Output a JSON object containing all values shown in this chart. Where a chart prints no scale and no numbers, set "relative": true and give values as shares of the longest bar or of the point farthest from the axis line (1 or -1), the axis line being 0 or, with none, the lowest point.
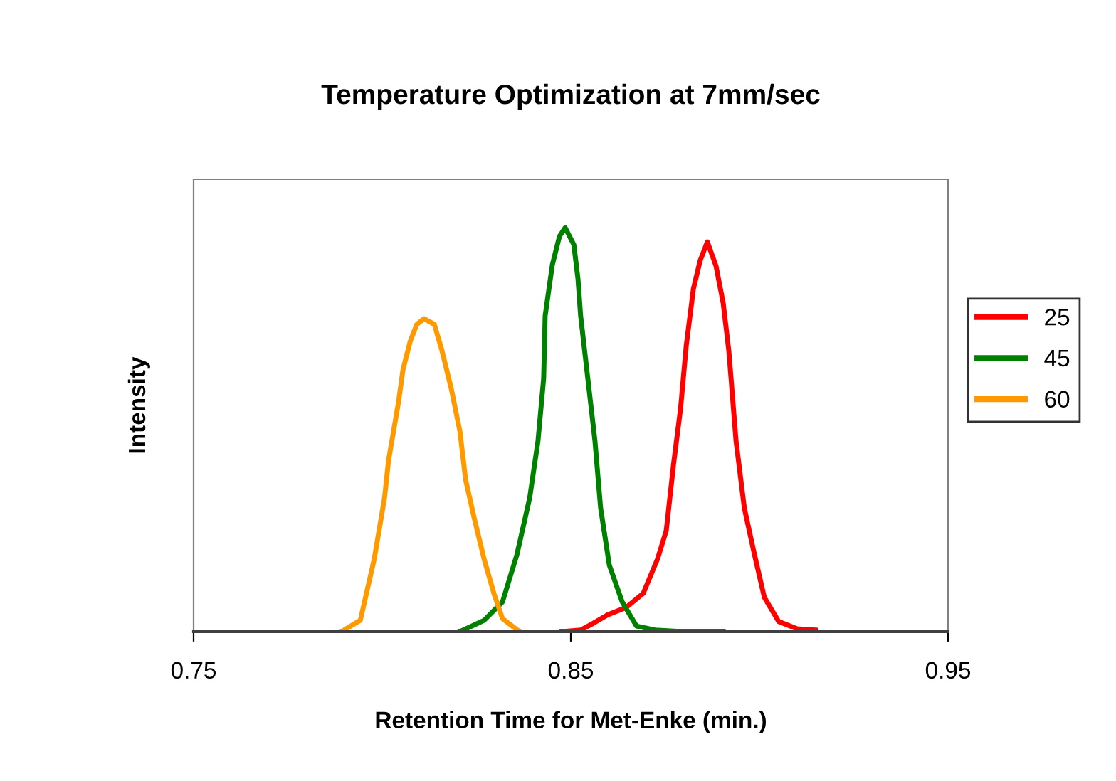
{
  "chart_data": {
    "type": "line",
    "title": "Temperature Optimization at 7mm/sec",
    "xlabel": "Retention Time for Met-Enke (min.)",
    "ylabel": "Intensity",
    "relative": true,
    "xlim": [
      0.75,
      0.95
    ],
    "xticks": [
      0.75,
      0.85,
      0.95
    ],
    "grid": false,
    "legend": "right",
    "marker": "none",
    "line_style": "solid",
    "series": [
      {
        "name": "25",
        "color": "#ff0000",
        "x": [
          0.8477,
          0.8526,
          0.856,
          0.8598,
          0.8647,
          0.8692,
          0.873,
          0.8753,
          0.8772,
          0.8791,
          0.8806,
          0.8825,
          0.8843,
          0.8862,
          0.8885,
          0.8904,
          0.8919,
          0.8938,
          0.896,
          0.8987,
          0.9013,
          0.9051,
          0.91,
          0.9149
        ],
        "values": [
          0,
          0.004,
          0.021,
          0.042,
          0.06,
          0.095,
          0.18,
          0.25,
          0.412,
          0.553,
          0.708,
          0.849,
          0.919,
          0.965,
          0.905,
          0.813,
          0.694,
          0.472,
          0.306,
          0.19,
          0.085,
          0.025,
          0.007,
          0.004
        ]
      },
      {
        "name": "45",
        "color": "#008000",
        "x": [
          0.8206,
          0.827,
          0.8319,
          0.8357,
          0.8391,
          0.8413,
          0.8428,
          0.8432,
          0.8451,
          0.847,
          0.8485,
          0.8508,
          0.8519,
          0.8526,
          0.8545,
          0.8564,
          0.8579,
          0.8602,
          0.8636,
          0.8674,
          0.8723,
          0.8798,
          0.8904
        ],
        "values": [
          0,
          0.028,
          0.074,
          0.19,
          0.331,
          0.472,
          0.627,
          0.782,
          0.908,
          0.979,
          1.0,
          0.958,
          0.873,
          0.782,
          0.627,
          0.472,
          0.306,
          0.165,
          0.074,
          0.014,
          0.004,
          0,
          0
        ]
      },
      {
        "name": "60",
        "color": "#ff9900",
        "x": [
          0.7892,
          0.7942,
          0.7979,
          0.8006,
          0.8017,
          0.8043,
          0.8055,
          0.8074,
          0.8092,
          0.8111,
          0.8138,
          0.8157,
          0.8183,
          0.8206,
          0.8221,
          0.8243,
          0.827,
          0.8296,
          0.8319,
          0.8364
        ],
        "values": [
          0,
          0.028,
          0.18,
          0.33,
          0.425,
          0.567,
          0.648,
          0.718,
          0.761,
          0.775,
          0.761,
          0.701,
          0.602,
          0.496,
          0.377,
          0.285,
          0.18,
          0.095,
          0.032,
          0
        ]
      }
    ]
  }
}
